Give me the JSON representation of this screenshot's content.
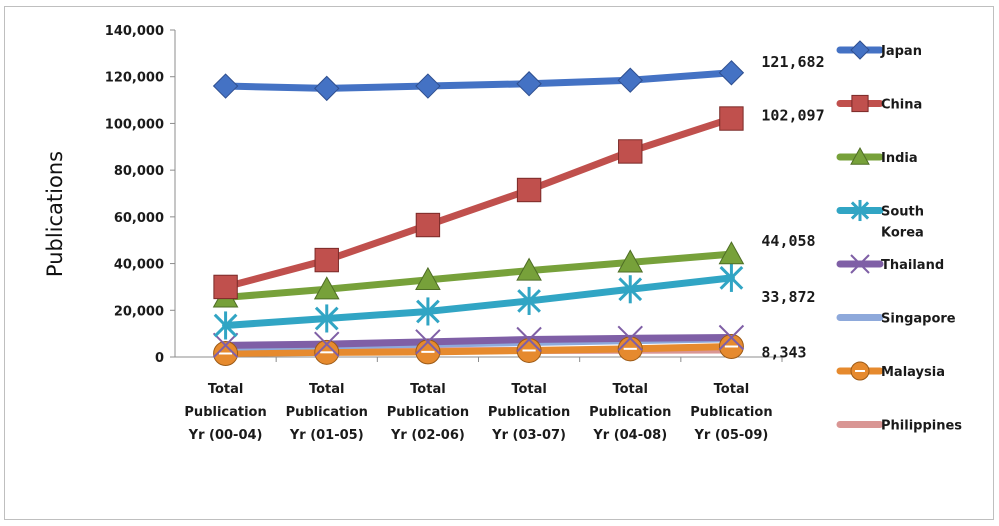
{
  "chart_data": {
    "type": "line",
    "ylabel": "Publications",
    "ylim": [
      0,
      140000
    ],
    "yticks": [
      "0",
      "20,000",
      "40,000",
      "60,000",
      "80,000",
      "100,000",
      "120,000",
      "140,000"
    ],
    "categories": [
      [
        "Total",
        "Publication",
        "Yr (00-04)"
      ],
      [
        "Total",
        "Publication",
        "Yr (01-05)"
      ],
      [
        "Total",
        "Publication",
        "Yr (02-06)"
      ],
      [
        "Total",
        "Publication",
        "Yr (03-07)"
      ],
      [
        "Total",
        "Publication",
        "Yr (04-08)"
      ],
      [
        "Total",
        "Publication",
        "Yr (05-09)"
      ]
    ],
    "legend_position": "right",
    "series": [
      {
        "name": "Japan",
        "legend_lines": [
          "Japan"
        ],
        "color": "#4472C4",
        "marker": "diamond",
        "values": [
          116000,
          115000,
          116000,
          117000,
          118500,
          121682
        ],
        "end_label": "121,682"
      },
      {
        "name": "China",
        "legend_lines": [
          "China"
        ],
        "color": "#C0504D",
        "marker": "square",
        "values": [
          30000,
          41500,
          56500,
          71500,
          88000,
          102097
        ],
        "end_label": "102,097"
      },
      {
        "name": "India",
        "legend_lines": [
          "India"
        ],
        "color": "#77A13A",
        "marker": "triangle",
        "values": [
          25500,
          29000,
          33000,
          37000,
          40500,
          44058
        ],
        "end_label": "44,058"
      },
      {
        "name": "South Korea",
        "legend_lines": [
          "South",
          "Korea"
        ],
        "color": "#31A5C4",
        "marker": "star",
        "values": [
          13500,
          16500,
          19500,
          24000,
          29000,
          33872
        ],
        "end_label": "33,872"
      },
      {
        "name": "Thailand",
        "legend_lines": [
          "Thailand"
        ],
        "color": "#7F5FA6",
        "marker": "x",
        "values": [
          5000,
          5500,
          6500,
          7500,
          8000,
          8343
        ],
        "end_label": "8,343"
      },
      {
        "name": "Singapore",
        "legend_lines": [
          "Singapore"
        ],
        "color": "#8EA9DB",
        "marker": "line",
        "values": [
          4200,
          4800,
          5500,
          6200,
          7000,
          7800
        ],
        "end_label": ""
      },
      {
        "name": "Malaysia",
        "legend_lines": [
          "Malaysia"
        ],
        "color": "#E68A2E",
        "marker": "circle",
        "values": [
          1500,
          2000,
          2200,
          2800,
          3500,
          4500
        ],
        "end_label": ""
      },
      {
        "name": "Philippines",
        "legend_lines": [
          "Philippines"
        ],
        "color": "#D99694",
        "marker": "line",
        "values": [
          2500,
          2600,
          2700,
          2800,
          2900,
          3000
        ],
        "end_label": ""
      }
    ]
  }
}
